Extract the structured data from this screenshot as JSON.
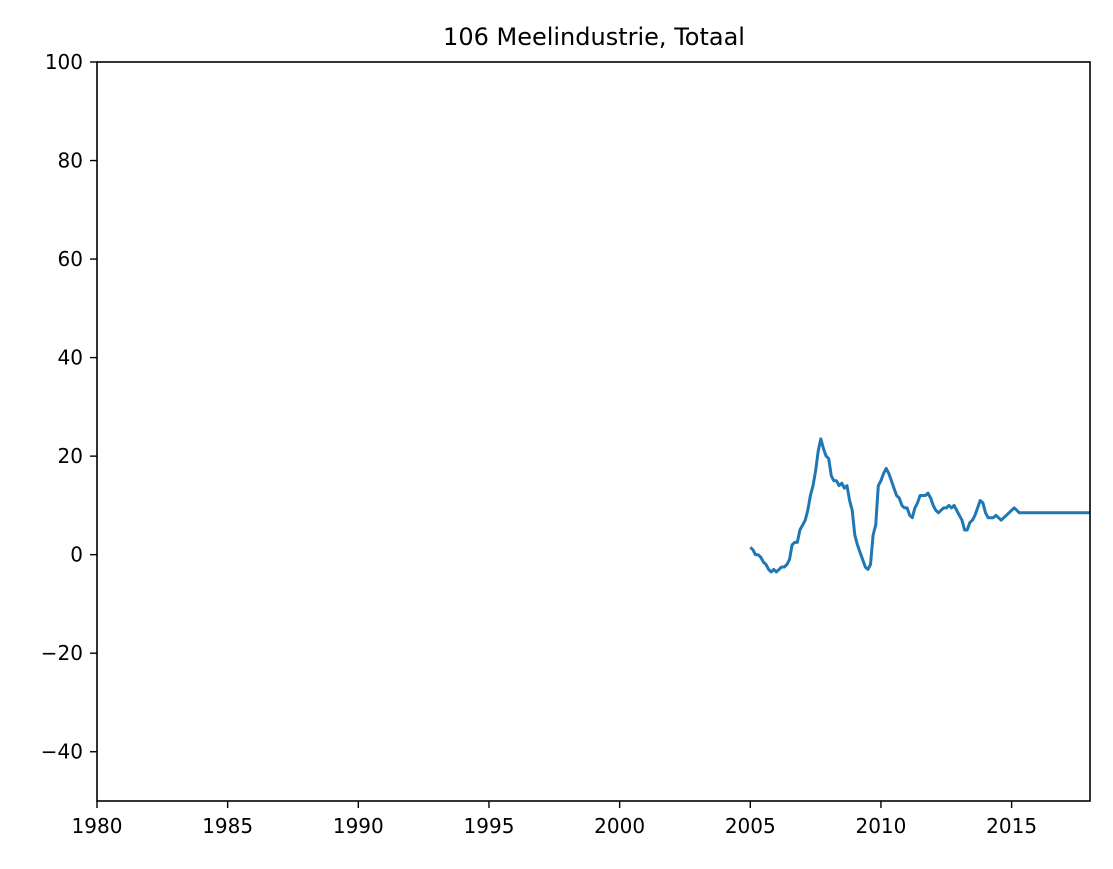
{
  "chart_data": {
    "type": "line",
    "title": "106 Meelindustrie, Totaal",
    "xlabel": "",
    "ylabel": "",
    "xlim": [
      1980,
      2018
    ],
    "ylim": [
      -50,
      100
    ],
    "x_ticks": [
      1980,
      1985,
      1990,
      1995,
      2000,
      2005,
      2010,
      2015
    ],
    "x_tick_labels": [
      "1980",
      "1985",
      "1990",
      "1995",
      "2000",
      "2005",
      "2010",
      "2015"
    ],
    "y_ticks": [
      -40,
      -20,
      0,
      20,
      40,
      60,
      80,
      100
    ],
    "y_tick_labels": [
      "−40",
      "−20",
      "0",
      "20",
      "40",
      "60",
      "80",
      "100"
    ],
    "grid": false,
    "line_color": "#1f77b4",
    "series": [
      {
        "x": [
          2005.0,
          2005.1,
          2005.2,
          2005.3,
          2005.4,
          2005.5,
          2005.6,
          2005.7,
          2005.8,
          2005.9,
          2006.0,
          2006.1,
          2006.2,
          2006.3,
          2006.4,
          2006.5,
          2006.6,
          2006.7,
          2006.8,
          2006.9,
          2007.0,
          2007.1,
          2007.2,
          2007.3,
          2007.4,
          2007.5,
          2007.6,
          2007.7,
          2007.8,
          2007.9,
          2008.0,
          2008.1,
          2008.2,
          2008.3,
          2008.4,
          2008.5,
          2008.6,
          2008.7,
          2008.8,
          2008.9,
          2009.0,
          2009.1,
          2009.2,
          2009.3,
          2009.4,
          2009.5,
          2009.6,
          2009.7,
          2009.8,
          2009.9,
          2010.0,
          2010.1,
          2010.2,
          2010.3,
          2010.4,
          2010.5,
          2010.6,
          2010.7,
          2010.8,
          2010.9,
          2011.0,
          2011.1,
          2011.2,
          2011.3,
          2011.4,
          2011.5,
          2011.6,
          2011.7,
          2011.8,
          2011.9,
          2012.0,
          2012.1,
          2012.2,
          2012.3,
          2012.4,
          2012.5,
          2012.6,
          2012.7,
          2012.8,
          2012.9,
          2013.0,
          2013.1,
          2013.2,
          2013.3,
          2013.4,
          2013.5,
          2013.6,
          2013.7,
          2013.8,
          2013.9,
          2014.0,
          2014.1,
          2014.2,
          2014.3,
          2014.4,
          2014.5,
          2014.6,
          2014.7,
          2014.8,
          2014.9,
          2015.0,
          2015.1,
          2015.2,
          2015.3,
          2015.4,
          2015.5,
          2015.6,
          2015.7,
          2015.8,
          2015.9,
          2016.0,
          2016.1,
          2016.2,
          2016.3,
          2016.4,
          2016.5,
          2016.6,
          2016.7,
          2016.8,
          2016.9,
          2017.0,
          2017.1,
          2017.2,
          2017.3,
          2017.4,
          2017.5,
          2017.6,
          2017.7,
          2017.8,
          2017.9,
          2018.0
        ],
        "values": [
          1.5,
          1.0,
          0.0,
          0.0,
          -0.5,
          -1.5,
          -2.0,
          -3.0,
          -3.5,
          -3.0,
          -3.5,
          -3.0,
          -2.5,
          -2.5,
          -2.0,
          -1.0,
          2.0,
          2.5,
          2.5,
          5.0,
          6.0,
          7.0,
          9.0,
          12.0,
          14.0,
          17.0,
          21.0,
          23.5,
          21.5,
          20.0,
          19.5,
          16.0,
          15.0,
          15.0,
          14.0,
          14.5,
          13.5,
          14.0,
          11.0,
          9.0,
          4.0,
          2.0,
          0.5,
          -1.0,
          -2.5,
          -3.0,
          -2.0,
          4.0,
          6.0,
          14.0,
          15.0,
          16.5,
          17.5,
          16.5,
          15.0,
          13.5,
          12.0,
          11.5,
          10.0,
          9.5,
          9.5,
          8.0,
          7.5,
          9.5,
          10.5,
          12.0,
          12.0,
          12.0,
          12.5,
          11.5,
          10.0,
          9.0,
          8.5,
          9.0,
          9.5,
          9.5,
          10.0,
          9.5,
          10.0,
          9.0,
          8.0,
          7.0,
          5.0,
          5.0,
          6.5,
          7.0,
          8.0,
          9.5,
          11.0,
          10.5,
          8.5,
          7.5,
          7.5,
          7.5,
          8.0,
          7.5,
          7.0,
          7.5,
          8.0,
          8.5,
          9.0,
          9.5,
          9.0,
          8.5,
          8.5,
          8.5,
          8.5,
          8.5,
          8.5,
          8.5,
          8.5,
          8.5,
          8.5,
          8.5,
          8.5,
          8.5,
          8.5,
          8.5,
          8.5,
          8.5,
          8.5,
          8.5,
          8.5,
          8.5,
          8.5,
          8.5,
          8.5,
          8.5,
          8.5,
          8.5,
          8.5
        ]
      }
    ]
  }
}
